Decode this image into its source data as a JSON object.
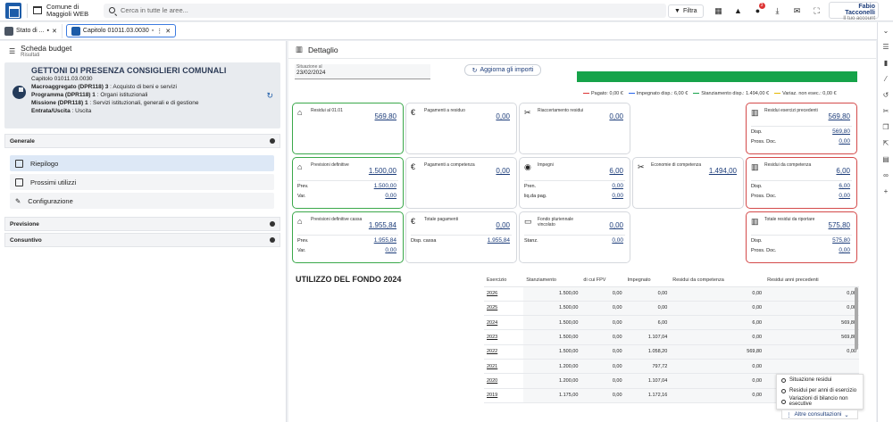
{
  "topbar": {
    "municipality": "Comune di Maggioli WEB",
    "search_placeholder": "Cerca in tutte le aree...",
    "filter": "Filtra",
    "notif_count": "3",
    "user_name": "Fabio Tacconelli",
    "user_sub": "Il tuo account"
  },
  "tabs": [
    {
      "label": "Stato di ..."
    },
    {
      "label": "Capitolo 01011.03.0030"
    }
  ],
  "left": {
    "title": "Scheda budget",
    "subtitle": "Risultati",
    "cap_title": "GETTONI DI PRESENZA CONSIGLIERI COMUNALI",
    "cap_code": "Capitolo 01011.03.0030",
    "lines": [
      {
        "k": "Macroaggregato (DPR118) 3",
        "v": ": Acquisto di beni e servizi"
      },
      {
        "k": "Programma (DPR118) 1",
        "v": ": Organi istituzionali"
      },
      {
        "k": "Missione (DPR118) 1",
        "v": ": Servizi istituzionali, generali e di gestione"
      },
      {
        "k": "Entrata/Uscita",
        "v": ": Uscita"
      }
    ],
    "sections": {
      "generale": "Generale",
      "previsione": "Previsione",
      "consuntivo": "Consuntivo"
    },
    "menu": [
      "Riepilogo",
      "Prossimi utilizzi",
      "Configurazione"
    ]
  },
  "detail": {
    "title": "Dettaglio",
    "sit_label": "Situazione al",
    "sit_value": "23/02/2024",
    "aggiorna": "Aggiorna gli importi",
    "legend": [
      "Pagato: 0,00 €",
      "Impegnato disp.: 6,00 €",
      "Stanziamento disp.: 1.494,00 €",
      "Variaz. non esec.: 0,00 €"
    ],
    "legend_colors": [
      "#d33",
      "#2563eb",
      "#16a34a",
      "#e6b800"
    ],
    "cards": [
      {
        "title": "Residui al 01.01",
        "value": "569,80",
        "rows": []
      },
      {
        "title": "Pagamenti a residuo",
        "value": "0,00",
        "rows": []
      },
      {
        "title": "Riaccertamento residui",
        "value": "0,00",
        "rows": []
      },
      {
        "title": "Residui esercizi precedenti",
        "value": "569,80",
        "rows": [
          {
            "k": "Disp.",
            "v": "569,80"
          },
          {
            "k": "Pross. Doc.",
            "v": "0,00"
          }
        ]
      },
      {
        "title": "Previsioni definitive",
        "value": "1.500,00",
        "rows": [
          {
            "k": "Prev.",
            "v": "1.500,00"
          },
          {
            "k": "Var.",
            "v": "0,00"
          }
        ]
      },
      {
        "title": "Pagamenti a competenza",
        "value": "0,00",
        "rows": []
      },
      {
        "title": "Impegni",
        "value": "6,00",
        "rows": [
          {
            "k": "Pren.",
            "v": "0,00"
          },
          {
            "k": "liq.da pag.",
            "v": "0,00"
          }
        ]
      },
      {
        "title": "Economie di competenza",
        "value": "1.494,00",
        "rows": []
      },
      {
        "title": "Residui da competenza",
        "value": "6,00",
        "rows": [
          {
            "k": "Disp.",
            "v": "6,00"
          },
          {
            "k": "Pross. Doc.",
            "v": "0,00"
          }
        ]
      },
      {
        "title": "Previsioni definitive cassa",
        "value": "1.955,84",
        "rows": [
          {
            "k": "Prev.",
            "v": "1.955,84"
          },
          {
            "k": "Var.",
            "v": "0,00"
          }
        ]
      },
      {
        "title": "Totale pagamenti",
        "value": "0,00",
        "rows": [
          {
            "k": "Disp. cassa",
            "v": "1.955,84"
          }
        ]
      },
      {
        "title": "Fondo pluriennale vincolato",
        "value": "0,00",
        "rows": [
          {
            "k": "Stanz.",
            "v": "0,00"
          }
        ]
      },
      {
        "title": "Totale residui da riportare",
        "value": "575,80",
        "rows": [
          {
            "k": "Disp.",
            "v": "575,80"
          },
          {
            "k": "Pross. Doc.",
            "v": "0,00"
          }
        ]
      }
    ],
    "fondo_title": "UTILIZZO DEL FONDO 2024",
    "table": {
      "headers": [
        "Esercizio",
        "Stanziamento",
        "di cui FPV",
        "Impegnato",
        "Residui da competenza",
        "Residui anni precedenti"
      ],
      "rows": [
        [
          "2026",
          "1.500,00",
          "0,00",
          "0,00",
          "0,00",
          "0,00"
        ],
        [
          "2025",
          "1.500,00",
          "0,00",
          "0,00",
          "0,00",
          "0,00"
        ],
        [
          "2024",
          "1.500,00",
          "0,00",
          "6,00",
          "6,00",
          "569,80"
        ],
        [
          "2023",
          "1.500,00",
          "0,00",
          "1.107,04",
          "0,00",
          "569,80"
        ],
        [
          "2022",
          "1.500,00",
          "0,00",
          "1.058,20",
          "569,80",
          "0,00"
        ],
        [
          "2021",
          "1.200,00",
          "0,00",
          "797,72",
          "0,00",
          ""
        ],
        [
          "2020",
          "1.200,00",
          "0,00",
          "1.107,04",
          "0,00",
          ""
        ],
        [
          "2019",
          "1.175,00",
          "0,00",
          "1.172,16",
          "0,00",
          ""
        ]
      ]
    },
    "popup": [
      "Situazione residui",
      "Residui per anni di esercizio",
      "Variazioni di bilancio non esecutive"
    ],
    "altre": "Altre consultazioni"
  }
}
